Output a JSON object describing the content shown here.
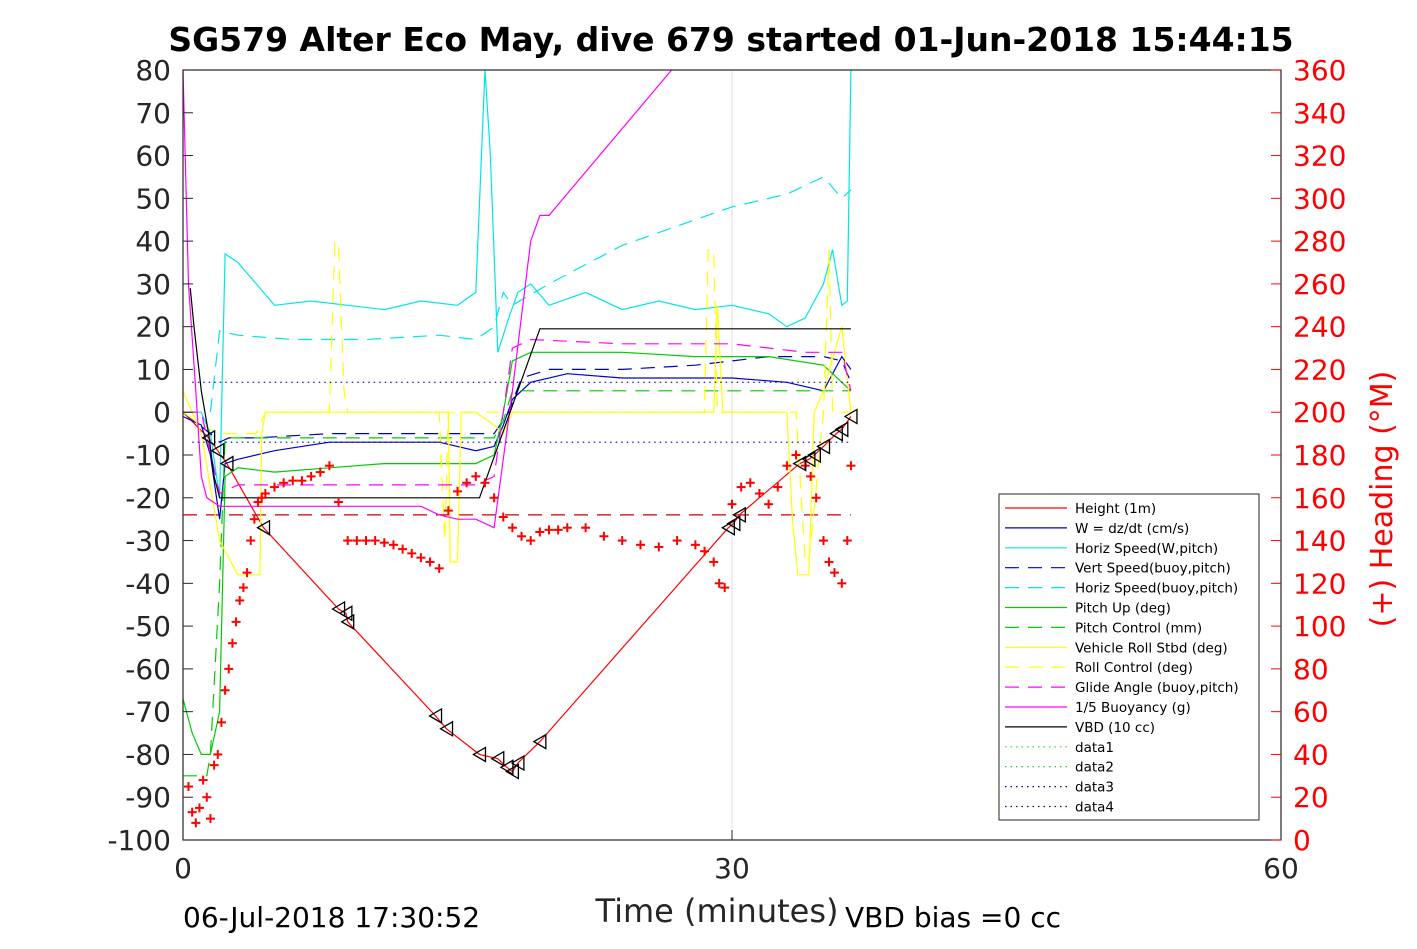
{
  "chart_data": {
    "type": "line",
    "title": "SG579 Alter Eco May, dive 679 started 01-Jun-2018 15:44:15",
    "xlabel": "Time (minutes)",
    "ylabel_right": "(+) Heading (°M)",
    "xlim": [
      0,
      60
    ],
    "ylim_left": [
      -100,
      80
    ],
    "ylim_right": [
      0,
      360
    ],
    "x_ticks": [
      "0",
      "30",
      "60"
    ],
    "y_ticks_left": [
      "80",
      "70",
      "60",
      "50",
      "40",
      "30",
      "20",
      "10",
      "0",
      "-10",
      "-20",
      "-30",
      "-40",
      "-50",
      "-60",
      "-70",
      "-80",
      "-90",
      "-100"
    ],
    "y_ticks_right": [
      "360",
      "340",
      "320",
      "300",
      "280",
      "260",
      "240",
      "220",
      "200",
      "180",
      "160",
      "140",
      "120",
      "100",
      "80",
      "60",
      "40",
      "20",
      "0"
    ],
    "footer_left": "06-Jul-2018 17:30:52",
    "footer_right": "VBD bias =0 cc",
    "legend_position": "lower-right",
    "grid": "major x only",
    "series": [
      {
        "name": "Height (1m)",
        "color": "#ff0000",
        "style": "solid",
        "x": [
          0.0,
          1.4,
          1.9,
          2.4,
          4.4,
          8.5,
          8.9,
          9.0,
          13.8,
          14.4,
          16.2,
          17.2,
          17.7,
          18.0,
          18.3,
          19.5,
          29.8,
          30.1,
          30.4,
          33.7,
          34.2,
          34.5,
          35.0,
          35.7,
          36.0,
          36.5
        ],
        "y": [
          0,
          -6,
          -9,
          -12,
          -27,
          -46,
          -47,
          -49,
          -71,
          -74,
          -80,
          -81,
          -83,
          -84,
          -82,
          -77,
          -27,
          -26,
          -24,
          -12,
          -11,
          -10,
          -8,
          -5,
          -4,
          -1
        ]
      },
      {
        "name": "W = dz/dt (cm/s)",
        "color": "#0000cc",
        "style": "solid",
        "x": [
          0.0,
          1.0,
          1.5,
          2.0,
          2.3,
          3.0,
          5.0,
          8.0,
          11.0,
          14.0,
          16.0,
          17.0,
          17.5,
          18.0,
          19.0,
          21.0,
          24.0,
          27.0,
          30.0,
          33.0,
          35.0,
          36.0,
          36.5
        ],
        "y": [
          -1,
          -3,
          -10,
          -25,
          -12,
          -11,
          -9,
          -7,
          -7,
          -7,
          -9,
          -8,
          -3,
          3,
          7,
          9,
          8,
          8,
          8,
          7,
          5,
          13,
          10
        ]
      },
      {
        "name": "Horiz Speed(W,pitch)",
        "color": "#00e5e5",
        "style": "solid",
        "x": [
          0.0,
          1.0,
          1.5,
          2.0,
          2.3,
          3.0,
          4.0,
          5.0,
          7.0,
          9.0,
          11.0,
          13.0,
          15.0,
          16.0,
          16.5,
          16.8,
          17.2,
          17.8,
          18.3,
          19.0,
          20.0,
          22.0,
          24.0,
          26.0,
          28.0,
          30.0,
          32.0,
          33.0,
          34.0,
          35.0,
          35.5,
          36.0,
          36.3,
          36.5
        ],
        "y": [
          0,
          0,
          -5,
          -20,
          37,
          35,
          30,
          25,
          26,
          25,
          24,
          26,
          25,
          28,
          80,
          60,
          14,
          22,
          28,
          30,
          25,
          28,
          24,
          26,
          24,
          25,
          23,
          20,
          22,
          30,
          38,
          25,
          26,
          80
        ]
      },
      {
        "name": "Vert Speed(buoy,pitch)",
        "color": "#0000cc",
        "style": "dashed",
        "x": [
          0.0,
          1.5,
          2.0,
          2.5,
          4.0,
          8.0,
          12.0,
          16.0,
          17.0,
          17.8,
          18.5,
          20.0,
          24.0,
          28.0,
          32.0,
          35.0,
          36.0,
          36.5
        ],
        "y": [
          0,
          -5,
          -7,
          -6,
          -6,
          -5,
          -5,
          -5,
          -5,
          0,
          8,
          10,
          10,
          11,
          13,
          13,
          12,
          7
        ]
      },
      {
        "name": "Horiz Speed(buoy,pitch)",
        "color": "#00e5e5",
        "style": "dashed",
        "x": [
          1.5,
          2.0,
          3.0,
          6.0,
          10.0,
          14.0,
          16.0,
          17.0,
          17.5,
          18.0,
          20.0,
          24.0,
          28.0,
          30.0,
          33.0,
          35.0,
          36.0,
          36.5
        ],
        "y": [
          0,
          19,
          18,
          17,
          17,
          18,
          17,
          20,
          28,
          25,
          30,
          39,
          45,
          48,
          51,
          55,
          50,
          52
        ]
      },
      {
        "name": "Pitch Up (deg)",
        "color": "#00cc00",
        "style": "solid",
        "x": [
          0.0,
          0.5,
          1.0,
          1.5,
          2.0,
          2.3,
          3.0,
          5.0,
          8.0,
          11.0,
          14.0,
          16.0,
          17.0,
          17.5,
          18.0,
          19.0,
          20.0,
          24.0,
          28.0,
          32.0,
          35.0,
          36.0,
          36.5
        ],
        "y": [
          -67,
          -75,
          -80,
          -80,
          -70,
          -15,
          -13,
          -14,
          -13,
          -12,
          -12,
          -12,
          -10,
          0,
          12,
          14,
          14,
          14,
          13,
          13,
          11,
          7,
          5
        ]
      },
      {
        "name": "Pitch Control (mm)",
        "color": "#00cc00",
        "style": "dashed",
        "x": [
          0.0,
          1.3,
          1.5,
          2.0,
          2.3,
          3.0,
          8.0,
          14.0,
          16.0,
          17.0,
          17.5,
          18.0,
          19.0,
          24.0,
          30.0,
          35.0,
          36.5
        ],
        "y": [
          -85,
          -85,
          -80,
          -40,
          -6,
          -6,
          -6,
          -6,
          -6,
          -6,
          -2,
          5,
          5,
          5,
          5,
          5,
          5
        ]
      },
      {
        "name": "Vehicle Roll Stbd (deg)",
        "color": "#ffff00",
        "style": "solid",
        "x": [
          0.0,
          1.0,
          2.0,
          3.0,
          4.2,
          4.3,
          4.5,
          8.0,
          12.0,
          14.5,
          14.6,
          15.0,
          15.2,
          16.0,
          17.0,
          17.5,
          18.0,
          20.0,
          24.0,
          28.0,
          29.0,
          29.2,
          29.5,
          30.0,
          33.0,
          33.3,
          33.6,
          34.2,
          34.5,
          35.0,
          36.0,
          36.5
        ],
        "y": [
          5,
          -5,
          -30,
          -38,
          -38,
          -5,
          0,
          0,
          0,
          0,
          -35,
          -35,
          0,
          0,
          -3,
          -5,
          0,
          0,
          0,
          0,
          0,
          25,
          0,
          0,
          0,
          -25,
          -38,
          -38,
          0,
          5,
          20,
          0
        ]
      },
      {
        "name": "Roll Control (deg)",
        "color": "#ffff00",
        "style": "dashed",
        "x": [
          0.0,
          1.0,
          2.0,
          4.0,
          4.5,
          8.0,
          8.3,
          8.5,
          8.8,
          9.0,
          14.0,
          14.3,
          14.5,
          15.0,
          16.0,
          18.0,
          22.0,
          28.5,
          28.7,
          29.0,
          29.2,
          30.0,
          33.5,
          34.0,
          34.2,
          35.0,
          35.3,
          35.5,
          36.5
        ],
        "y": [
          0,
          -3,
          -5,
          -5,
          0,
          0,
          40,
          39,
          5,
          0,
          0,
          -30,
          0,
          0,
          0,
          0,
          0,
          0,
          38,
          38,
          0,
          0,
          0,
          -35,
          -35,
          0,
          38,
          0,
          0
        ]
      },
      {
        "name": "Glide Angle (buoy,pitch)",
        "color": "#ff00ff",
        "style": "dashed",
        "x": [
          0.0,
          1.0,
          2.0,
          3.0,
          8.0,
          14.0,
          16.0,
          17.0,
          17.5,
          18.0,
          19.0,
          24.0,
          30.0,
          34.0,
          36.0,
          36.5
        ],
        "y": [
          0,
          0,
          -19,
          -17,
          -17,
          -17,
          -17,
          -15,
          0,
          15,
          17,
          16,
          16,
          14,
          14,
          5
        ]
      },
      {
        "name": "1/5 Buoyancy (g)",
        "color": "#ff00ff",
        "style": "solid",
        "x": [
          0.0,
          0.3,
          0.7,
          1.0,
          1.3,
          2.0,
          3.0,
          8.0,
          13.0,
          14.0,
          15.0,
          16.0,
          16.5,
          17.0,
          18.0,
          19.0,
          19.5,
          20.0,
          26.7
        ],
        "y": [
          80,
          30,
          5,
          -15,
          -20,
          -22,
          -22,
          -22,
          -22,
          -24,
          -25,
          -25,
          -26,
          -27,
          5,
          40,
          46,
          46,
          80
        ]
      },
      {
        "name": "VBD (10 cc)",
        "color": "#000000",
        "style": "solid",
        "x": [
          0.4,
          0.6,
          1.0,
          1.4,
          1.7,
          2.0,
          16.0,
          16.2,
          19.5,
          36.5
        ],
        "y": [
          29,
          20,
          5,
          -5,
          -15,
          -20,
          -20,
          -20,
          19.5,
          19.5
        ]
      },
      {
        "name": "data1",
        "color": "#33cc33",
        "style": "dotted",
        "x": [],
        "y": []
      },
      {
        "name": "data2",
        "color": "#00cc00",
        "style": "dotted",
        "x": [],
        "y": []
      },
      {
        "name": "data3",
        "color": "#0000aa",
        "style": "dotted",
        "x": [
          0.5,
          36.5
        ],
        "y": [
          7,
          7
        ]
      },
      {
        "name": "data4",
        "color": "#0000aa",
        "style": "dotted",
        "x": [
          0.5,
          36.5
        ],
        "y": [
          -7,
          -7
        ]
      }
    ],
    "heading_reference": {
      "color": "#cc0000",
      "style": "dashed",
      "heading": 152,
      "x": [
        0,
        36.5
      ]
    },
    "heading_points": {
      "color": "#ff0000",
      "marker": "+",
      "x": [
        0.3,
        0.5,
        0.7,
        0.9,
        1.1,
        1.3,
        1.5,
        1.7,
        1.9,
        2.1,
        2.3,
        2.5,
        2.7,
        2.9,
        3.1,
        3.3,
        3.5,
        3.7,
        3.9,
        4.1,
        4.3,
        4.5,
        5.0,
        5.5,
        6.0,
        6.5,
        7.0,
        7.5,
        8.0,
        8.5,
        9.0,
        9.5,
        10.0,
        10.5,
        11.0,
        11.5,
        12.0,
        12.5,
        13.0,
        13.5,
        14.0,
        14.5,
        15.0,
        15.5,
        16.0,
        16.5,
        17.0,
        17.5,
        18.0,
        18.5,
        19.0,
        19.5,
        20.0,
        20.5,
        21.0,
        22.0,
        23.0,
        24.0,
        25.0,
        26.0,
        27.0,
        28.0,
        28.5,
        29.0,
        29.3,
        29.6,
        30.0,
        30.5,
        31.0,
        31.5,
        32.0,
        32.5,
        33.0,
        33.5,
        34.0,
        34.3,
        34.6,
        35.0,
        35.3,
        35.6,
        36.0,
        36.3,
        36.5
      ],
      "heading": [
        25,
        13,
        8,
        15,
        28,
        20,
        10,
        35,
        40,
        55,
        70,
        80,
        92,
        102,
        112,
        118,
        125,
        140,
        150,
        158,
        160,
        162,
        165,
        167,
        168,
        168,
        170,
        172,
        175,
        158,
        140,
        140,
        140,
        140,
        139,
        138,
        136,
        134,
        132,
        130,
        127,
        154,
        163,
        167,
        170,
        167,
        160,
        151,
        146,
        142,
        140,
        144,
        145,
        145,
        146,
        146,
        142,
        140,
        138,
        137,
        140,
        138,
        135,
        130,
        120,
        118,
        157,
        165,
        167,
        162,
        157,
        165,
        175,
        180,
        175,
        170,
        160,
        140,
        130,
        125,
        120,
        140,
        175
      ]
    }
  }
}
